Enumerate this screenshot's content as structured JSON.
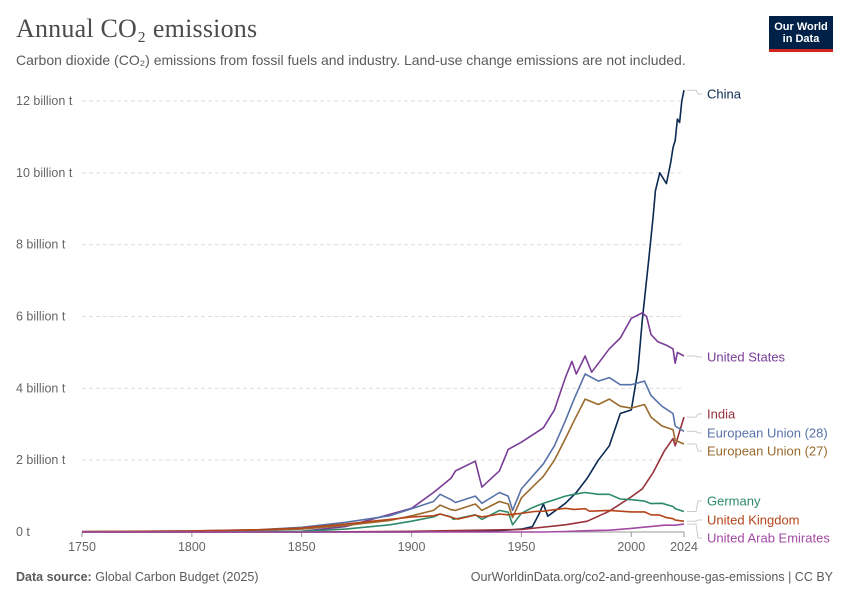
{
  "header": {
    "title": "Annual CO₂ emissions",
    "subtitle": "Carbon dioxide (CO₂) emissions from fossil fuels and industry. Land-use change emissions are not included.",
    "logo_text": "Our World in Data"
  },
  "footer": {
    "source_label": "Data source:",
    "source_value": "Global Carbon Budget (2025)",
    "link": "OurWorldinData.org/co2-and-greenhouse-gas-emissions | CC BY"
  },
  "colors": {
    "China": "#0b2a52",
    "United States": "#7a3d96",
    "India": "#99323c",
    "European Union (28)": "#5873aa",
    "European Union (27)": "#9a6a2d",
    "Germany": "#2d8a6a",
    "United Kingdom": "#b5441a",
    "United Arab Emirates": "#a34aa3"
  },
  "chart_data": {
    "type": "line",
    "title": "Annual CO₂ emissions",
    "xlim": [
      1750,
      2024
    ],
    "ylim": [
      0,
      12
    ],
    "x_ticks": [
      "1750",
      "1800",
      "1850",
      "1900",
      "1950",
      "2000",
      "2024"
    ],
    "y_ticks": [
      "0 t",
      "2 billion t",
      "4 billion t",
      "6 billion t",
      "8 billion t",
      "10 billion t",
      "12 billion t"
    ],
    "y_unit": "billion t",
    "grid": "horizontal dashed",
    "series": [
      {
        "name": "China",
        "points": [
          [
            1750,
            0
          ],
          [
            1900,
            0
          ],
          [
            1940,
            0.04
          ],
          [
            1950,
            0.08
          ],
          [
            1955,
            0.15
          ],
          [
            1958,
            0.5
          ],
          [
            1960,
            0.78
          ],
          [
            1962,
            0.44
          ],
          [
            1970,
            0.8
          ],
          [
            1975,
            1.1
          ],
          [
            1980,
            1.5
          ],
          [
            1985,
            2.0
          ],
          [
            1990,
            2.4
          ],
          [
            1995,
            3.3
          ],
          [
            2000,
            3.4
          ],
          [
            2003,
            4.5
          ],
          [
            2005,
            5.9
          ],
          [
            2008,
            7.6
          ],
          [
            2010,
            8.8
          ],
          [
            2011,
            9.5
          ],
          [
            2013,
            10.0
          ],
          [
            2014,
            9.9
          ],
          [
            2015,
            9.8
          ],
          [
            2016,
            9.7
          ],
          [
            2018,
            10.3
          ],
          [
            2019,
            10.7
          ],
          [
            2020,
            10.9
          ],
          [
            2021,
            11.5
          ],
          [
            2022,
            11.4
          ],
          [
            2023,
            12.0
          ],
          [
            2024,
            12.3
          ]
        ]
      },
      {
        "name": "United States",
        "points": [
          [
            1750,
            0
          ],
          [
            1800,
            0.001
          ],
          [
            1850,
            0.02
          ],
          [
            1870,
            0.15
          ],
          [
            1900,
            0.66
          ],
          [
            1910,
            1.1
          ],
          [
            1918,
            1.5
          ],
          [
            1920,
            1.7
          ],
          [
            1929,
            1.97
          ],
          [
            1932,
            1.25
          ],
          [
            1940,
            1.7
          ],
          [
            1944,
            2.3
          ],
          [
            1950,
            2.5
          ],
          [
            1960,
            2.9
          ],
          [
            1965,
            3.4
          ],
          [
            1970,
            4.3
          ],
          [
            1973,
            4.75
          ],
          [
            1975,
            4.4
          ],
          [
            1979,
            4.9
          ],
          [
            1982,
            4.45
          ],
          [
            1990,
            5.1
          ],
          [
            1995,
            5.4
          ],
          [
            2000,
            5.95
          ],
          [
            2005,
            6.1
          ],
          [
            2007,
            6.0
          ],
          [
            2009,
            5.5
          ],
          [
            2012,
            5.3
          ],
          [
            2016,
            5.2
          ],
          [
            2019,
            5.1
          ],
          [
            2020,
            4.7
          ],
          [
            2021,
            5.0
          ],
          [
            2024,
            4.9
          ]
        ]
      },
      {
        "name": "India",
        "points": [
          [
            1750,
            0
          ],
          [
            1850,
            0
          ],
          [
            1900,
            0.02
          ],
          [
            1950,
            0.07
          ],
          [
            1970,
            0.2
          ],
          [
            1980,
            0.3
          ],
          [
            1990,
            0.58
          ],
          [
            2000,
            0.98
          ],
          [
            2005,
            1.2
          ],
          [
            2010,
            1.66
          ],
          [
            2015,
            2.25
          ],
          [
            2019,
            2.6
          ],
          [
            2020,
            2.4
          ],
          [
            2022,
            2.8
          ],
          [
            2024,
            3.2
          ]
        ]
      },
      {
        "name": "European Union (28)",
        "points": [
          [
            1750,
            0.01
          ],
          [
            1800,
            0.03
          ],
          [
            1830,
            0.06
          ],
          [
            1850,
            0.13
          ],
          [
            1870,
            0.27
          ],
          [
            1890,
            0.45
          ],
          [
            1900,
            0.65
          ],
          [
            1910,
            0.85
          ],
          [
            1913,
            1.05
          ],
          [
            1918,
            0.9
          ],
          [
            1920,
            0.82
          ],
          [
            1929,
            1.0
          ],
          [
            1932,
            0.8
          ],
          [
            1940,
            1.1
          ],
          [
            1944,
            1.0
          ],
          [
            1946,
            0.6
          ],
          [
            1950,
            1.2
          ],
          [
            1955,
            1.55
          ],
          [
            1960,
            1.9
          ],
          [
            1965,
            2.4
          ],
          [
            1970,
            3.1
          ],
          [
            1974,
            3.7
          ],
          [
            1979,
            4.4
          ],
          [
            1985,
            4.2
          ],
          [
            1990,
            4.3
          ],
          [
            1995,
            4.1
          ],
          [
            2000,
            4.1
          ],
          [
            2006,
            4.2
          ],
          [
            2009,
            3.8
          ],
          [
            2014,
            3.5
          ],
          [
            2019,
            3.3
          ],
          [
            2020,
            2.95
          ],
          [
            2024,
            2.8
          ]
        ]
      },
      {
        "name": "European Union (27)",
        "points": [
          [
            1750,
            0.008
          ],
          [
            1800,
            0.02
          ],
          [
            1850,
            0.08
          ],
          [
            1870,
            0.18
          ],
          [
            1890,
            0.32
          ],
          [
            1900,
            0.45
          ],
          [
            1910,
            0.6
          ],
          [
            1913,
            0.75
          ],
          [
            1918,
            0.62
          ],
          [
            1920,
            0.6
          ],
          [
            1929,
            0.78
          ],
          [
            1932,
            0.6
          ],
          [
            1940,
            0.85
          ],
          [
            1944,
            0.78
          ],
          [
            1946,
            0.4
          ],
          [
            1950,
            0.95
          ],
          [
            1955,
            1.25
          ],
          [
            1960,
            1.55
          ],
          [
            1965,
            2.0
          ],
          [
            1970,
            2.6
          ],
          [
            1974,
            3.1
          ],
          [
            1979,
            3.7
          ],
          [
            1985,
            3.55
          ],
          [
            1990,
            3.7
          ],
          [
            1995,
            3.5
          ],
          [
            2000,
            3.45
          ],
          [
            2006,
            3.55
          ],
          [
            2009,
            3.2
          ],
          [
            2014,
            2.95
          ],
          [
            2019,
            2.85
          ],
          [
            2020,
            2.55
          ],
          [
            2024,
            2.45
          ]
        ]
      },
      {
        "name": "Germany",
        "points": [
          [
            1750,
            0
          ],
          [
            1800,
            0.001
          ],
          [
            1850,
            0.02
          ],
          [
            1870,
            0.08
          ],
          [
            1890,
            0.2
          ],
          [
            1900,
            0.3
          ],
          [
            1910,
            0.42
          ],
          [
            1913,
            0.5
          ],
          [
            1918,
            0.42
          ],
          [
            1919,
            0.35
          ],
          [
            1929,
            0.48
          ],
          [
            1932,
            0.35
          ],
          [
            1940,
            0.6
          ],
          [
            1944,
            0.55
          ],
          [
            1946,
            0.2
          ],
          [
            1950,
            0.52
          ],
          [
            1955,
            0.68
          ],
          [
            1960,
            0.8
          ],
          [
            1965,
            0.9
          ],
          [
            1970,
            1.0
          ],
          [
            1974,
            1.05
          ],
          [
            1979,
            1.1
          ],
          [
            1985,
            1.05
          ],
          [
            1990,
            1.05
          ],
          [
            1995,
            0.92
          ],
          [
            2000,
            0.9
          ],
          [
            2006,
            0.86
          ],
          [
            2009,
            0.79
          ],
          [
            2014,
            0.8
          ],
          [
            2019,
            0.71
          ],
          [
            2020,
            0.65
          ],
          [
            2024,
            0.57
          ]
        ]
      },
      {
        "name": "United Kingdom",
        "points": [
          [
            1750,
            0.009
          ],
          [
            1800,
            0.03
          ],
          [
            1830,
            0.06
          ],
          [
            1850,
            0.11
          ],
          [
            1870,
            0.22
          ],
          [
            1890,
            0.35
          ],
          [
            1900,
            0.42
          ],
          [
            1910,
            0.45
          ],
          [
            1913,
            0.5
          ],
          [
            1921,
            0.36
          ],
          [
            1929,
            0.47
          ],
          [
            1932,
            0.42
          ],
          [
            1940,
            0.5
          ],
          [
            1944,
            0.48
          ],
          [
            1950,
            0.52
          ],
          [
            1956,
            0.57
          ],
          [
            1960,
            0.58
          ],
          [
            1965,
            0.62
          ],
          [
            1970,
            0.66
          ],
          [
            1974,
            0.63
          ],
          [
            1979,
            0.65
          ],
          [
            1981,
            0.58
          ],
          [
            1990,
            0.6
          ],
          [
            2000,
            0.56
          ],
          [
            2006,
            0.56
          ],
          [
            2009,
            0.48
          ],
          [
            2013,
            0.47
          ],
          [
            2016,
            0.4
          ],
          [
            2019,
            0.37
          ],
          [
            2020,
            0.33
          ],
          [
            2024,
            0.3
          ]
        ]
      },
      {
        "name": "United Arab Emirates",
        "points": [
          [
            1750,
            0
          ],
          [
            1955,
            0
          ],
          [
            1960,
            0.001
          ],
          [
            1970,
            0.015
          ],
          [
            1980,
            0.035
          ],
          [
            1990,
            0.05
          ],
          [
            2000,
            0.1
          ],
          [
            2005,
            0.13
          ],
          [
            2010,
            0.16
          ],
          [
            2015,
            0.19
          ],
          [
            2020,
            0.19
          ],
          [
            2024,
            0.22
          ]
        ]
      }
    ]
  }
}
